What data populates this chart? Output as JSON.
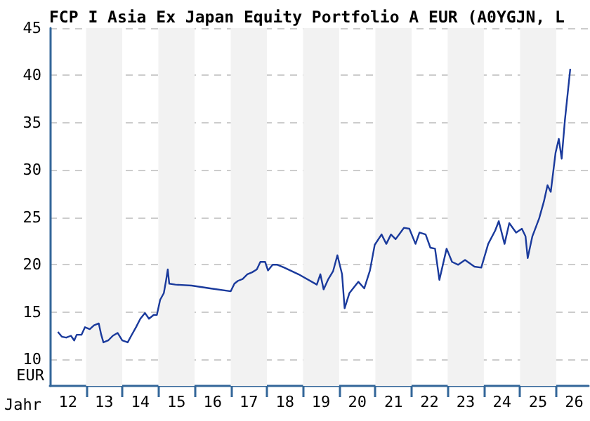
{
  "chart_data": {
    "type": "line",
    "title": "FCP I Asia Ex Japan Equity Portfolio A EUR (A0YGJN, L",
    "xlabel": "Jahr",
    "ylabel": "EUR",
    "x": [
      "2012-03-22",
      "2012-05-01",
      "2012-06-14",
      "2012-08-01",
      "2012-09-03",
      "2012-09-28",
      "2012-11-15",
      "2012-12-21",
      "2013-02-07",
      "2013-03-22",
      "2013-05-09",
      "2013-06-03",
      "2013-06-25",
      "2013-08-12",
      "2013-09-28",
      "2013-11-15",
      "2014-01-01",
      "2014-02-25",
      "2014-04-02",
      "2014-05-20",
      "2014-07-03",
      "2014-08-19",
      "2014-09-28",
      "2014-11-15",
      "2014-12-17",
      "2015-01-19",
      "2015-02-25",
      "2015-03-19",
      "2015-04-06",
      "2015-04-21",
      "2015-06-22",
      "2015-12-03",
      "2016-06-07",
      "2017-01-01",
      "2017-02-07",
      "2017-03-15",
      "2017-05-01",
      "2017-06-18",
      "2017-08-04",
      "2017-09-21",
      "2017-10-27",
      "2017-12-14",
      "2018-01-12",
      "2018-02-28",
      "2018-04-17",
      "2018-06-25",
      "2018-11-15",
      "2019-05-20",
      "2019-06-25",
      "2019-07-28",
      "2019-09-14",
      "2019-10-31",
      "2019-12-14",
      "2020-01-30",
      "2020-02-25",
      "2020-04-13",
      "2020-07-13",
      "2020-09-10",
      "2020-11-07",
      "2020-12-25",
      "2021-03-04",
      "2021-04-21",
      "2021-06-07",
      "2021-07-24",
      "2021-10-16",
      "2021-12-10",
      "2022-02-10",
      "2022-03-22",
      "2022-05-23",
      "2022-07-10",
      "2022-08-26",
      "2022-10-09",
      "2022-12-21",
      "2023-02-14",
      "2023-04-17",
      "2023-06-25",
      "2023-09-28",
      "2023-12-06",
      "2024-02-14",
      "2024-04-24",
      "2024-05-31",
      "2024-07-28",
      "2024-09-14",
      "2024-11-22",
      "2025-01-19",
      "2025-02-25",
      "2025-03-19",
      "2025-05-05",
      "2025-07-13",
      "2025-08-30",
      "2025-10-05",
      "2025-11-07",
      "2025-12-25",
      "2026-01-27",
      "2026-02-25",
      "2026-03-30",
      "2026-05-01",
      "2026-05-23"
    ],
    "series": [
      {
        "color": "#1a3a9c",
        "values": [
          12.9,
          12.4,
          12.3,
          12.5,
          12.0,
          12.6,
          12.6,
          13.4,
          13.2,
          13.6,
          13.8,
          12.6,
          11.8,
          12.0,
          12.5,
          12.8,
          12.0,
          11.8,
          12.5,
          13.4,
          14.3,
          14.9,
          14.3,
          14.7,
          14.7,
          16.3,
          17.0,
          18.3,
          19.5,
          18.0,
          17.9,
          17.8,
          17.5,
          17.2,
          18.0,
          18.3,
          18.5,
          19.0,
          19.2,
          19.5,
          20.3,
          20.3,
          19.4,
          20.0,
          20.0,
          19.7,
          19.0,
          17.9,
          19.0,
          17.4,
          18.5,
          19.3,
          21.0,
          19.0,
          15.4,
          17.0,
          18.2,
          17.5,
          19.4,
          22.1,
          23.2,
          22.2,
          23.2,
          22.7,
          23.9,
          23.8,
          22.2,
          23.4,
          23.2,
          21.8,
          21.7,
          18.4,
          21.7,
          20.3,
          20.0,
          20.5,
          19.8,
          19.7,
          22.2,
          23.6,
          24.6,
          22.2,
          24.4,
          23.4,
          23.8,
          23.0,
          20.7,
          23.0,
          24.9,
          26.7,
          28.4,
          27.7,
          31.8,
          33.3,
          31.2,
          35.3,
          38.5,
          40.7
        ]
      }
    ],
    "xlim": [
      "2012-01-01",
      "2026-11-24"
    ],
    "xticks": [
      {
        "value": "2013-01-01",
        "label": null
      },
      {
        "value": "2014-01-01",
        "label": null
      },
      {
        "value": "2015-01-01",
        "label": null
      },
      {
        "value": "2016-01-01",
        "label": null
      },
      {
        "value": "2017-01-01",
        "label": null
      },
      {
        "value": "2018-01-01",
        "label": null
      },
      {
        "value": "2019-01-01",
        "label": null
      },
      {
        "value": "2020-01-01",
        "label": null
      },
      {
        "value": "2021-01-01",
        "label": null
      },
      {
        "value": "2022-01-01",
        "label": null
      },
      {
        "value": "2023-01-01",
        "label": null
      },
      {
        "value": "2024-01-01",
        "label": null
      },
      {
        "value": "2025-01-01",
        "label": null
      },
      {
        "value": "2026-01-01",
        "label": null
      },
      {
        "value": "2012-07-02",
        "label": "12"
      },
      {
        "value": "2013-07-02",
        "label": "13"
      },
      {
        "value": "2014-07-02",
        "label": "14"
      },
      {
        "value": "2015-07-02",
        "label": "15"
      },
      {
        "value": "2016-07-02",
        "label": "16"
      },
      {
        "value": "2017-07-02",
        "label": "17"
      },
      {
        "value": "2018-07-02",
        "label": "18"
      },
      {
        "value": "2019-07-02",
        "label": "19"
      },
      {
        "value": "2020-07-02",
        "label": "20"
      },
      {
        "value": "2021-07-02",
        "label": "21"
      },
      {
        "value": "2022-07-02",
        "label": "22"
      },
      {
        "value": "2023-07-02",
        "label": "23"
      },
      {
        "value": "2024-07-02",
        "label": "24"
      },
      {
        "value": "2025-07-02",
        "label": "25"
      },
      {
        "value": "2026-07-02",
        "label": "26"
      }
    ],
    "ylim": [
      7.2,
      45
    ],
    "yticks": [
      10,
      15,
      20,
      25,
      30,
      35,
      40,
      45
    ],
    "bands": [
      {
        "axis": "x",
        "from": "2013-01-01",
        "to": "2014-01-01",
        "color": "#f2f2f2"
      },
      {
        "axis": "x",
        "from": "2015-01-01",
        "to": "2016-01-01",
        "color": "#f2f2f2"
      },
      {
        "axis": "x",
        "from": "2017-01-01",
        "to": "2018-01-01",
        "color": "#f2f2f2"
      },
      {
        "axis": "x",
        "from": "2019-01-01",
        "to": "2020-01-01",
        "color": "#f2f2f2"
      },
      {
        "axis": "x",
        "from": "2021-01-01",
        "to": "2022-01-01",
        "color": "#f2f2f2"
      },
      {
        "axis": "x",
        "from": "2023-01-01",
        "to": "2024-01-01",
        "color": "#f2f2f2"
      },
      {
        "axis": "x",
        "from": "2025-01-01",
        "to": "2026-01-01",
        "color": "#f2f2f2"
      }
    ],
    "grid": "y",
    "marker": "none",
    "line_style": "solid"
  }
}
